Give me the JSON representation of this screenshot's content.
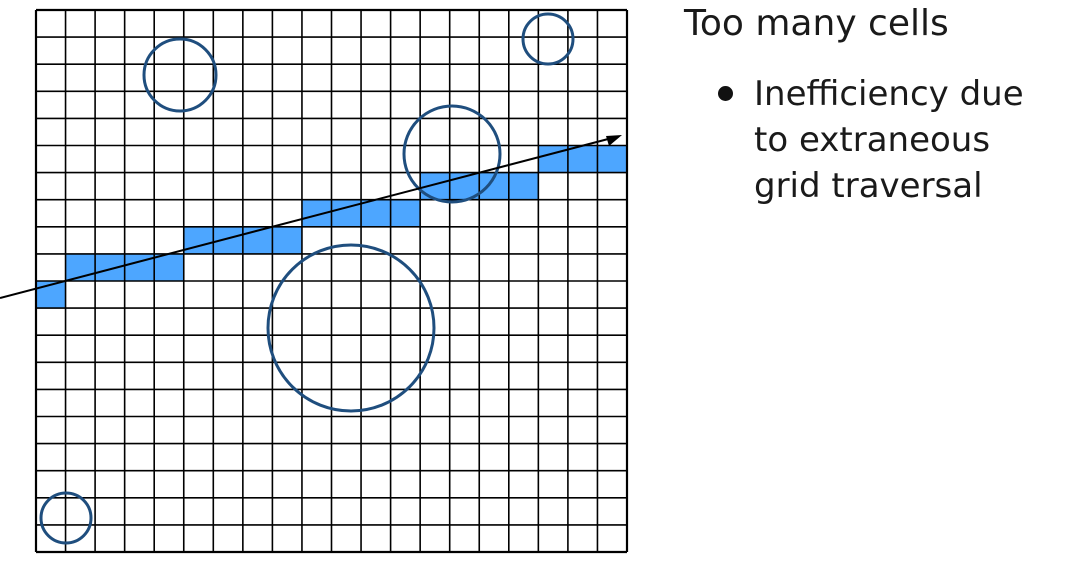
{
  "text_panel": {
    "heading": "Too many cells",
    "bullets": [
      {
        "text": "Inefficiency due to extraneous grid traversal"
      }
    ]
  },
  "grid": {
    "columns": 20,
    "rows": 20
  },
  "highlighted_cells": [
    [
      0,
      10
    ],
    [
      1,
      9
    ],
    [
      2,
      9
    ],
    [
      3,
      9
    ],
    [
      4,
      9
    ],
    [
      5,
      8
    ],
    [
      6,
      8
    ],
    [
      7,
      8
    ],
    [
      8,
      8
    ],
    [
      9,
      7
    ],
    [
      10,
      7
    ],
    [
      11,
      7
    ],
    [
      12,
      7
    ],
    [
      13,
      6
    ],
    [
      14,
      6
    ],
    [
      15,
      6
    ],
    [
      16,
      6
    ],
    [
      17,
      5
    ],
    [
      18,
      5
    ],
    [
      19,
      5
    ]
  ],
  "circles": [
    {
      "name": "small-circle-upper-left"
    },
    {
      "name": "small-circle-top-right"
    },
    {
      "name": "medium-circle-on-ray"
    },
    {
      "name": "large-circle-center"
    },
    {
      "name": "small-circle-bottom-left"
    }
  ],
  "colors": {
    "grid_line": "#000000",
    "cell_highlight": "#4da6ff",
    "circle_stroke": "#1f4e7e",
    "ray": "#000000"
  }
}
